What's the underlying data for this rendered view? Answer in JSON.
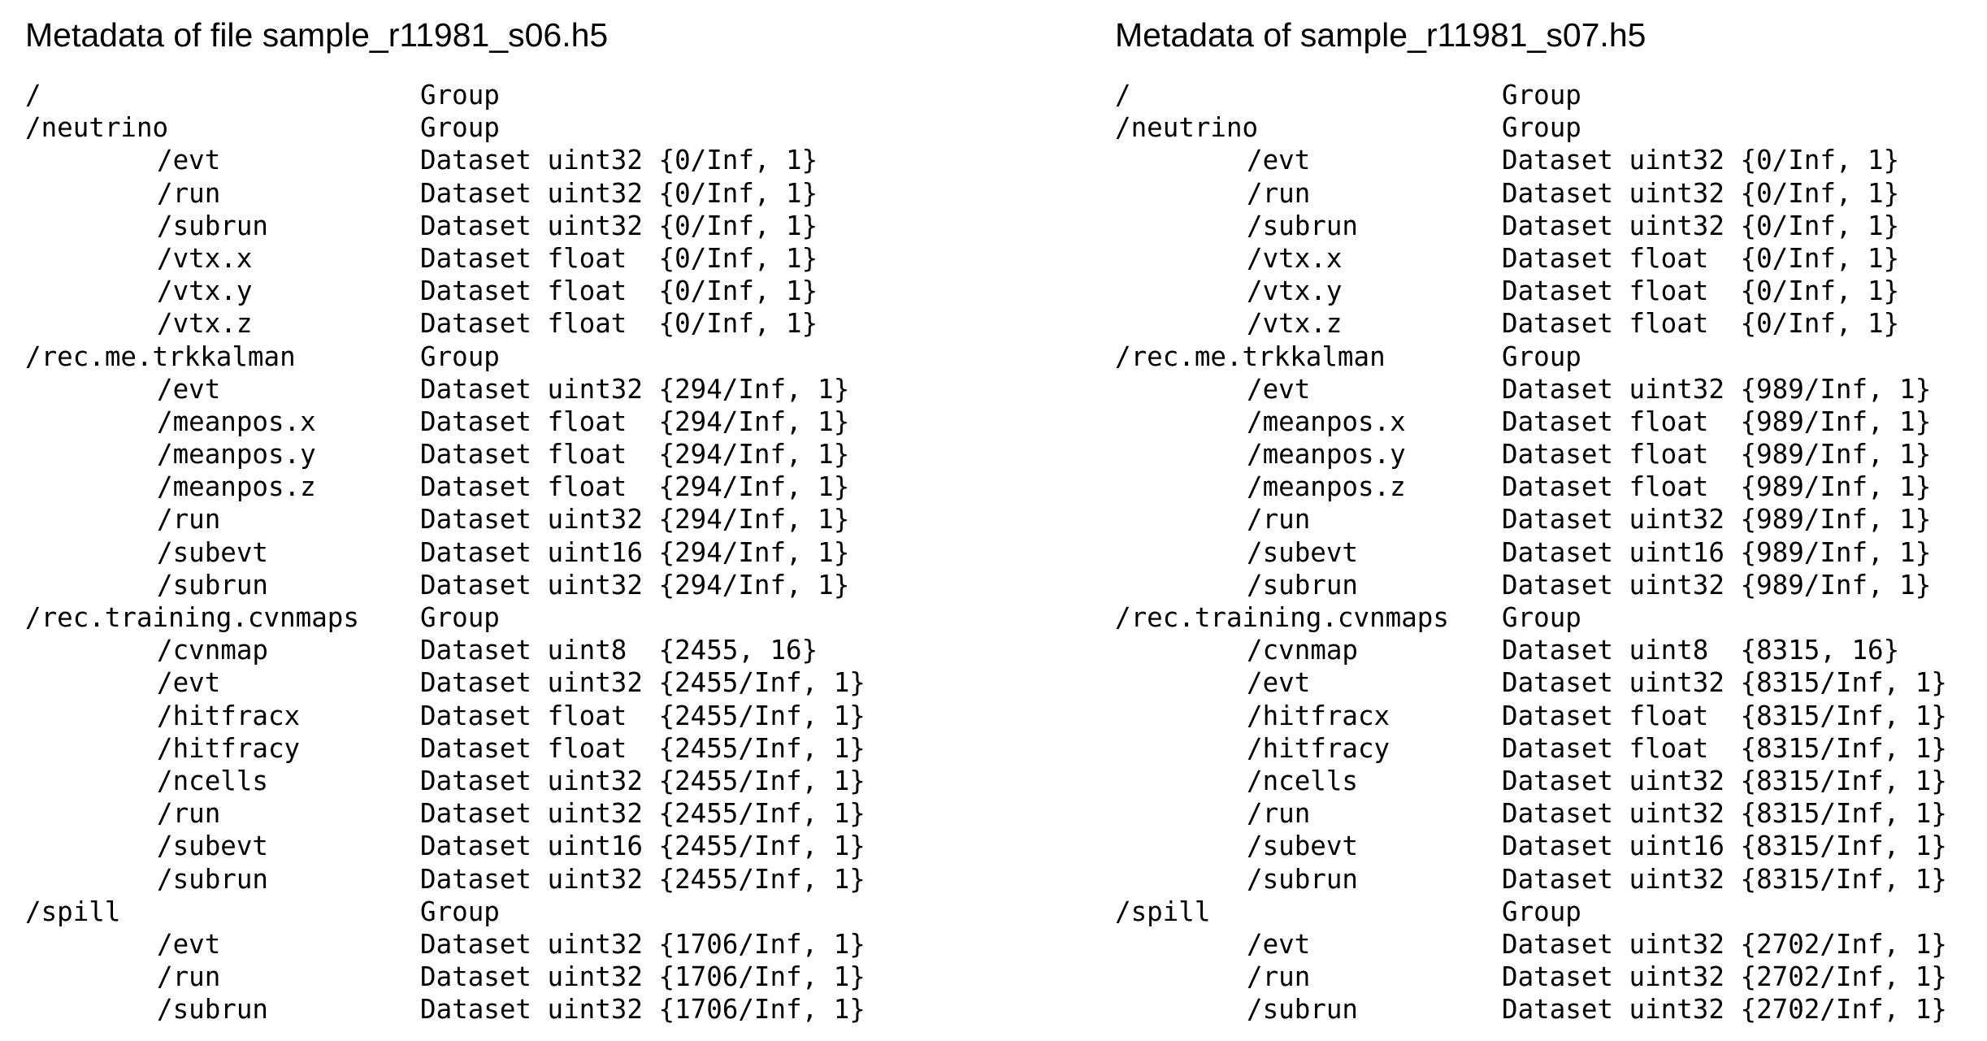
{
  "left": {
    "title": "Metadata of file sample_r11981_s06.h5",
    "rows": [
      {
        "path": "/",
        "kind": "Group",
        "child": false
      },
      {
        "path": "/neutrino",
        "kind": "Group",
        "child": false
      },
      {
        "path": "/evt",
        "kind": "Dataset uint32 {0/Inf, 1}",
        "child": true
      },
      {
        "path": "/run",
        "kind": "Dataset uint32 {0/Inf, 1}",
        "child": true
      },
      {
        "path": "/subrun",
        "kind": "Dataset uint32 {0/Inf, 1}",
        "child": true
      },
      {
        "path": "/vtx.x",
        "kind": "Dataset float  {0/Inf, 1}",
        "child": true
      },
      {
        "path": "/vtx.y",
        "kind": "Dataset float  {0/Inf, 1}",
        "child": true
      },
      {
        "path": "/vtx.z",
        "kind": "Dataset float  {0/Inf, 1}",
        "child": true
      },
      {
        "path": "/rec.me.trkkalman",
        "kind": "Group",
        "child": false
      },
      {
        "path": "/evt",
        "kind": "Dataset uint32 {294/Inf, 1}",
        "child": true
      },
      {
        "path": "/meanpos.x",
        "kind": "Dataset float  {294/Inf, 1}",
        "child": true
      },
      {
        "path": "/meanpos.y",
        "kind": "Dataset float  {294/Inf, 1}",
        "child": true
      },
      {
        "path": "/meanpos.z",
        "kind": "Dataset float  {294/Inf, 1}",
        "child": true
      },
      {
        "path": "/run",
        "kind": "Dataset uint32 {294/Inf, 1}",
        "child": true
      },
      {
        "path": "/subevt",
        "kind": "Dataset uint16 {294/Inf, 1}",
        "child": true
      },
      {
        "path": "/subrun",
        "kind": "Dataset uint32 {294/Inf, 1}",
        "child": true
      },
      {
        "path": "/rec.training.cvnmaps",
        "kind": "Group",
        "child": false
      },
      {
        "path": "/cvnmap",
        "kind": "Dataset uint8  {2455, 16}",
        "child": true
      },
      {
        "path": "/evt",
        "kind": "Dataset uint32 {2455/Inf, 1}",
        "child": true
      },
      {
        "path": "/hitfracx",
        "kind": "Dataset float  {2455/Inf, 1}",
        "child": true
      },
      {
        "path": "/hitfracy",
        "kind": "Dataset float  {2455/Inf, 1}",
        "child": true
      },
      {
        "path": "/ncells",
        "kind": "Dataset uint32 {2455/Inf, 1}",
        "child": true
      },
      {
        "path": "/run",
        "kind": "Dataset uint32 {2455/Inf, 1}",
        "child": true
      },
      {
        "path": "/subevt",
        "kind": "Dataset uint16 {2455/Inf, 1}",
        "child": true
      },
      {
        "path": "/subrun",
        "kind": "Dataset uint32 {2455/Inf, 1}",
        "child": true
      },
      {
        "path": "/spill",
        "kind": "Group",
        "child": false
      },
      {
        "path": "/evt",
        "kind": "Dataset uint32 {1706/Inf, 1}",
        "child": true
      },
      {
        "path": "/run",
        "kind": "Dataset uint32 {1706/Inf, 1}",
        "child": true
      },
      {
        "path": "/subrun",
        "kind": "Dataset uint32 {1706/Inf, 1}",
        "child": true
      }
    ]
  },
  "right": {
    "title": "Metadata of sample_r11981_s07.h5",
    "rows": [
      {
        "path": "/",
        "kind": "Group",
        "child": false
      },
      {
        "path": "/neutrino",
        "kind": "Group",
        "child": false
      },
      {
        "path": "/evt",
        "kind": "Dataset uint32 {0/Inf, 1}",
        "child": true
      },
      {
        "path": "/run",
        "kind": "Dataset uint32 {0/Inf, 1}",
        "child": true
      },
      {
        "path": "/subrun",
        "kind": "Dataset uint32 {0/Inf, 1}",
        "child": true
      },
      {
        "path": "/vtx.x",
        "kind": "Dataset float  {0/Inf, 1}",
        "child": true
      },
      {
        "path": "/vtx.y",
        "kind": "Dataset float  {0/Inf, 1}",
        "child": true
      },
      {
        "path": "/vtx.z",
        "kind": "Dataset float  {0/Inf, 1}",
        "child": true
      },
      {
        "path": "/rec.me.trkkalman",
        "kind": "Group",
        "child": false
      },
      {
        "path": "/evt",
        "kind": "Dataset uint32 {989/Inf, 1}",
        "child": true
      },
      {
        "path": "/meanpos.x",
        "kind": "Dataset float  {989/Inf, 1}",
        "child": true
      },
      {
        "path": "/meanpos.y",
        "kind": "Dataset float  {989/Inf, 1}",
        "child": true
      },
      {
        "path": "/meanpos.z",
        "kind": "Dataset float  {989/Inf, 1}",
        "child": true
      },
      {
        "path": "/run",
        "kind": "Dataset uint32 {989/Inf, 1}",
        "child": true
      },
      {
        "path": "/subevt",
        "kind": "Dataset uint16 {989/Inf, 1}",
        "child": true
      },
      {
        "path": "/subrun",
        "kind": "Dataset uint32 {989/Inf, 1}",
        "child": true
      },
      {
        "path": "/rec.training.cvnmaps",
        "kind": "Group",
        "child": false
      },
      {
        "path": "/cvnmap",
        "kind": "Dataset uint8  {8315, 16}",
        "child": true
      },
      {
        "path": "/evt",
        "kind": "Dataset uint32 {8315/Inf, 1}",
        "child": true
      },
      {
        "path": "/hitfracx",
        "kind": "Dataset float  {8315/Inf, 1}",
        "child": true
      },
      {
        "path": "/hitfracy",
        "kind": "Dataset float  {8315/Inf, 1}",
        "child": true
      },
      {
        "path": "/ncells",
        "kind": "Dataset uint32 {8315/Inf, 1}",
        "child": true
      },
      {
        "path": "/run",
        "kind": "Dataset uint32 {8315/Inf, 1}",
        "child": true
      },
      {
        "path": "/subevt",
        "kind": "Dataset uint16 {8315/Inf, 1}",
        "child": true
      },
      {
        "path": "/subrun",
        "kind": "Dataset uint32 {8315/Inf, 1}",
        "child": true
      },
      {
        "path": "/spill",
        "kind": "Group",
        "child": false
      },
      {
        "path": "/evt",
        "kind": "Dataset uint32 {2702/Inf, 1}",
        "child": true
      },
      {
        "path": "/run",
        "kind": "Dataset uint32 {2702/Inf, 1}",
        "child": true
      },
      {
        "path": "/subrun",
        "kind": "Dataset uint32 {2702/Inf, 1}",
        "child": true
      }
    ]
  }
}
